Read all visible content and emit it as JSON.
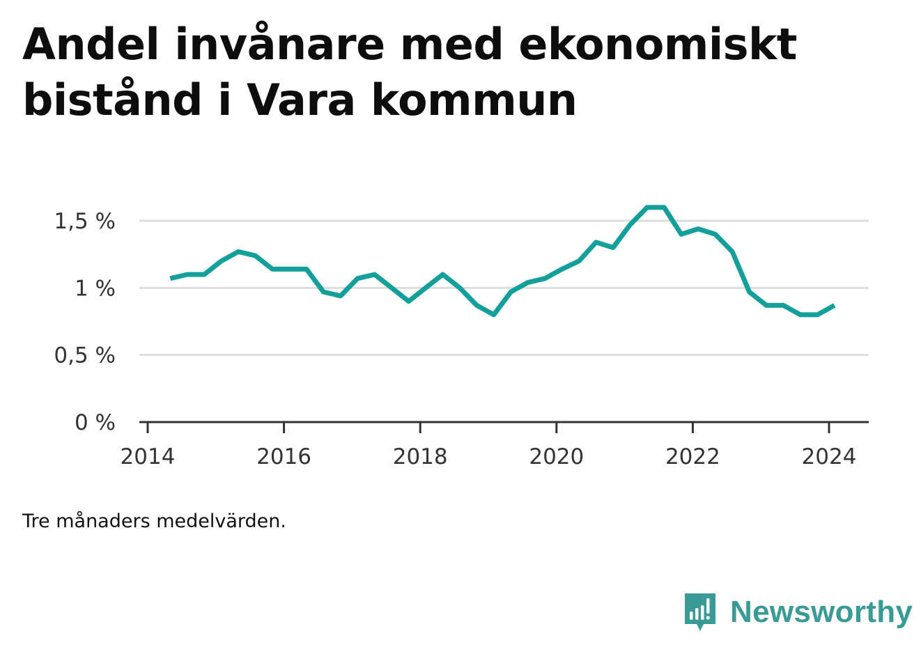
{
  "footnote": "Tre månaders medelvärden.",
  "brand": {
    "name": "Newsworthy",
    "icon": "newsworthy-logo-icon",
    "color": "#3a9a95"
  },
  "chart_data": {
    "type": "line",
    "title": "Andel invånare med ekonomiskt bistånd i Vara kommun",
    "xlabel": "",
    "ylabel": "",
    "xlim": [
      2014,
      2024.6
    ],
    "ylim": [
      0,
      1.5
    ],
    "x_ticks": [
      2014,
      2016,
      2018,
      2020,
      2022,
      2024
    ],
    "x_tick_labels": [
      "2014",
      "2016",
      "2018",
      "2020",
      "2022",
      "2024"
    ],
    "y_ticks": [
      0,
      0.5,
      1,
      1.5
    ],
    "y_tick_labels": [
      "0 %",
      "0,5 %",
      "1 %",
      "1,5 %"
    ],
    "grid": true,
    "legend": "none",
    "line_color": "#14a09a",
    "series": [
      {
        "x": [
          2014.33,
          2014.58,
          2014.83,
          2015.08,
          2015.33,
          2015.58,
          2015.83,
          2016.08,
          2016.33,
          2016.58,
          2016.83,
          2017.08,
          2017.33,
          2017.58,
          2017.83,
          2018.08,
          2018.33,
          2018.58,
          2018.83,
          2019.08,
          2019.33,
          2019.58,
          2019.83,
          2020.08,
          2020.33,
          2020.58,
          2020.83,
          2021.08,
          2021.33,
          2021.58,
          2021.83,
          2022.08,
          2022.33,
          2022.58,
          2022.83,
          2023.08,
          2023.33,
          2023.58,
          2023.83,
          2024.08
        ],
        "values": [
          1.07,
          1.1,
          1.1,
          1.2,
          1.27,
          1.24,
          1.14,
          1.14,
          1.14,
          0.97,
          0.94,
          1.07,
          1.1,
          1.0,
          0.9,
          1.0,
          1.1,
          1.0,
          0.87,
          0.8,
          0.97,
          1.04,
          1.07,
          1.14,
          1.2,
          1.34,
          1.3,
          1.47,
          1.6,
          1.6,
          1.4,
          1.44,
          1.4,
          1.27,
          0.97,
          0.87,
          0.87,
          0.8,
          0.8,
          0.87
        ]
      }
    ]
  }
}
